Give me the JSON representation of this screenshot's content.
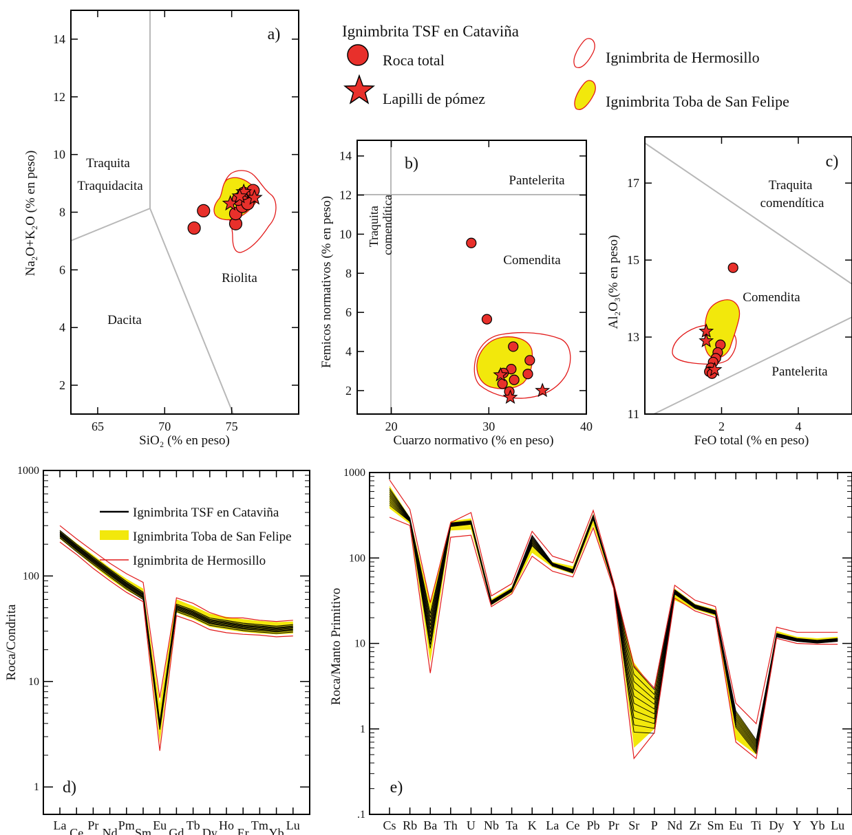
{
  "legend_top": {
    "title": "Ignimbrita TSF en Cataviña",
    "items": [
      {
        "symbol": "circle",
        "label": "Roca total"
      },
      {
        "symbol": "star",
        "label": "Lapilli de pómez"
      },
      {
        "symbol": "outline",
        "label": "Ignimbrita de Hermosillo"
      },
      {
        "symbol": "filled",
        "label": "Ignimbrita Toba de San Felipe"
      }
    ]
  },
  "colors": {
    "sample": "#e8302b",
    "tsf_field": "#f2e80c",
    "hermosillo_line": "#e21a1a",
    "boundary": "#b8b8b8",
    "pattern_line": "#000000"
  },
  "chart_data": [
    {
      "panel": "a)",
      "type": "scatter",
      "title": "",
      "xlabel": "SiO₂ (% en peso)",
      "ylabel": "Na₂O+K₂O (% en peso)",
      "xlim": [
        63,
        80
      ],
      "ylim": [
        1,
        15
      ],
      "xticks": [
        "65",
        "70",
        "75"
      ],
      "yticks": [
        "2",
        "4",
        "6",
        "8",
        "10",
        "12",
        "14"
      ],
      "fields": [
        "Traquita",
        "Traquidacita",
        "Riolita",
        "Dacita"
      ],
      "roca_total": [
        [
          72.2,
          7.45
        ],
        [
          72.9,
          8.05
        ],
        [
          75.3,
          7.6
        ],
        [
          75.3,
          7.95
        ],
        [
          75.8,
          8.2
        ],
        [
          75.5,
          8.45
        ],
        [
          76.4,
          8.5
        ],
        [
          76.6,
          8.75
        ],
        [
          76.2,
          8.3
        ],
        [
          75.9,
          8.65
        ]
      ],
      "lapilli": [
        [
          74.9,
          8.3
        ],
        [
          75.9,
          8.7
        ],
        [
          76.7,
          8.5
        ],
        [
          75.6,
          8.55
        ]
      ]
    },
    {
      "panel": "b)",
      "type": "scatter",
      "title": "",
      "xlabel": "Cuarzo normativo (% en peso)",
      "ylabel": "Femicos normativos (% en peso)",
      "xlim": [
        16.5,
        40
      ],
      "ylim": [
        0.8,
        14.8
      ],
      "xticks": [
        "20",
        "30",
        "40"
      ],
      "yticks": [
        "2",
        "4",
        "6",
        "8",
        "10",
        "12",
        "14"
      ],
      "fields": [
        "Pantelerita",
        "Comendita",
        "Traquita comendítica"
      ],
      "roca_total": [
        [
          28.2,
          9.55
        ],
        [
          29.8,
          5.65
        ],
        [
          32.5,
          4.25
        ],
        [
          34.2,
          3.55
        ],
        [
          34.0,
          2.85
        ],
        [
          32.3,
          3.1
        ],
        [
          32.6,
          2.55
        ],
        [
          31.4,
          2.35
        ],
        [
          32.1,
          1.95
        ],
        [
          31.5,
          2.9
        ]
      ],
      "lapilli": [
        [
          31.2,
          2.8
        ],
        [
          32.2,
          1.65
        ],
        [
          35.5,
          2.0
        ]
      ]
    },
    {
      "panel": "c)",
      "type": "scatter",
      "title": "",
      "xlabel": "FeO total (% en peso)",
      "ylabel": "Al₂O₃(% en peso)",
      "xlim": [
        0,
        5.4
      ],
      "ylim": [
        11,
        18.2
      ],
      "xticks": [
        "2",
        "4"
      ],
      "yticks": [
        "11",
        "13",
        "15",
        "17"
      ],
      "fields": [
        "Traquita comendítica",
        "Comendita",
        "Pantelerita"
      ],
      "roca_total": [
        [
          2.3,
          14.8
        ],
        [
          1.97,
          12.8
        ],
        [
          1.9,
          12.6
        ],
        [
          1.85,
          12.45
        ],
        [
          1.78,
          12.35
        ],
        [
          1.72,
          12.2
        ],
        [
          1.68,
          12.1
        ],
        [
          1.75,
          12.05
        ]
      ],
      "lapilli": [
        [
          1.6,
          13.15
        ],
        [
          1.6,
          12.9
        ],
        [
          1.82,
          12.15
        ]
      ]
    },
    {
      "panel": "d)",
      "type": "line",
      "title": "",
      "ylabel": "Roca/Condrita",
      "yscale": "log",
      "ylim": [
        0.55,
        1000
      ],
      "yticks": [
        "1",
        "10",
        "100",
        "1000"
      ],
      "categories": [
        "La",
        "Ce",
        "Pr",
        "Nd",
        "Pm",
        "Sm",
        "Eu",
        "Gd",
        "Tb",
        "Dy",
        "Ho",
        "Er",
        "Tm",
        "Yb",
        "Lu"
      ],
      "legend": [
        "Ignimbrita TSF en Cataviña",
        "Ignimbrita Toba de San Felipe",
        "Ignimbrita de Hermosillo"
      ],
      "pattern_median": [
        250,
        185,
        140,
        107,
        82,
        65,
        3.8,
        50,
        44,
        37,
        35,
        33,
        32,
        31,
        32
      ],
      "tsf_range": {
        "low": [
          225,
          168,
          125,
          94,
          73,
          60,
          2.6,
          45,
          39,
          33,
          31,
          29.5,
          28.5,
          28,
          28.5
        ],
        "high": [
          272,
          205,
          158,
          120,
          94,
          76,
          6.2,
          60,
          52,
          44,
          41,
          39,
          37.5,
          36.5,
          37
        ]
      },
      "hermosillo_range": {
        "low": [
          210,
          160,
          118,
          90,
          70,
          57,
          2.2,
          42,
          37,
          31,
          29,
          28,
          27.5,
          26.5,
          27
        ],
        "high": [
          300,
          225,
          172,
          132,
          105,
          87,
          7.0,
          62,
          55,
          45,
          40,
          40,
          38,
          37,
          38
        ]
      }
    },
    {
      "panel": "e)",
      "type": "line",
      "title": "",
      "ylabel": "Roca/Manto Primitivo",
      "yscale": "log",
      "ylim": [
        0.1,
        1000
      ],
      "yticks": [
        ".1",
        "1",
        "10",
        "100",
        "1000"
      ],
      "categories": [
        "Cs",
        "Rb",
        "Ba",
        "Th",
        "U",
        "Nb",
        "Ta",
        "K",
        "La",
        "Ce",
        "Pb",
        "Pr",
        "Sr",
        "P",
        "Nd",
        "Zr",
        "Sm",
        "Eu",
        "Ti",
        "Dy",
        "Y",
        "Yb",
        "Lu"
      ],
      "pattern_median": [
        520,
        280,
        14,
        245,
        260,
        30,
        42,
        160,
        84,
        70,
        300,
        48,
        2.2,
        1.6,
        40,
        27,
        23,
        1.3,
        0.62,
        12.5,
        11,
        10.5,
        11
      ],
      "tsf_range": {
        "low": [
          380,
          250,
          6,
          210,
          215,
          28,
          39,
          115,
          78,
          65,
          240,
          46,
          0.6,
          1.0,
          32,
          25,
          21,
          0.75,
          0.5,
          12,
          10.5,
          10,
          10.5
        ],
        "high": [
          700,
          300,
          30,
          270,
          290,
          33,
          46,
          170,
          90,
          80,
          330,
          50,
          6.0,
          2.8,
          44,
          29,
          25,
          1.6,
          0.75,
          14,
          12,
          11.5,
          12
        ]
      },
      "hermosillo_range": {
        "low": [
          300,
          240,
          4.5,
          175,
          185,
          27,
          38,
          105,
          70,
          60,
          225,
          44,
          0.45,
          0.9,
          34,
          24,
          20,
          0.7,
          0.45,
          11.5,
          10,
          9.8,
          9.8
        ],
        "high": [
          820,
          370,
          30,
          260,
          340,
          36,
          50,
          205,
          105,
          88,
          360,
          52,
          5.5,
          3.0,
          48,
          32,
          27,
          2.0,
          1.15,
          15.5,
          13.5,
          13.5,
          13.5
        ]
      }
    }
  ]
}
